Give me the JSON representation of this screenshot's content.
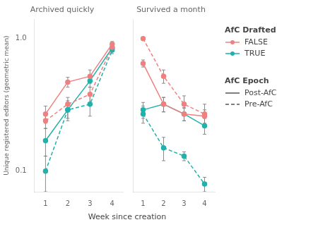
{
  "chart_data": {
    "type": "line",
    "xlabel": "Week since creation",
    "ylabel": "Unique registered editors (geometric mean)",
    "log": "y",
    "grid": false,
    "marker": "circle",
    "legend": "right",
    "xlim": [
      0.5,
      4.5
    ],
    "xticks": [
      1,
      2,
      3,
      4
    ],
    "ylim": [
      0.07,
      1.4
    ],
    "yticks": [
      0.1,
      {
        "value": 1.0,
        "label": "1.0"
      }
    ],
    "legend_groups": [
      {
        "title": "AfC Drafted",
        "entries": [
          {
            "name": "FALSE",
            "color": "#f08080",
            "line_style": "solid"
          },
          {
            "name": "TRUE",
            "color": "#20b2aa",
            "line_style": "solid"
          }
        ]
      },
      {
        "title": "AfC Epoch",
        "entries": [
          {
            "name": "Post-AfC",
            "color": "#555555",
            "line_style": "solid"
          },
          {
            "name": "Pre-AfC",
            "color": "#555555",
            "line_style": "dashed"
          }
        ]
      }
    ],
    "panels": [
      {
        "title": "Archived quickly",
        "series": [
          {
            "drafted": "FALSE",
            "epoch": "Post-AfC",
            "values": [
              0.27,
              0.47,
              0.52,
              0.91
            ],
            "errors": {
              "minus": [
                0.04,
                0.04,
                0.06,
                0.04
              ],
              "plus": [
                0.04,
                0.04,
                0.06,
                0.04
              ]
            }
          },
          {
            "drafted": "FALSE",
            "epoch": "Pre-AfC",
            "values": [
              0.24,
              0.32,
              0.38,
              0.86
            ],
            "errors": {
              "minus": [
                0.03,
                0.04,
                0.05,
                0.05
              ],
              "plus": [
                0.03,
                0.04,
                0.05,
                0.05
              ]
            }
          },
          {
            "drafted": "TRUE",
            "epoch": "Post-AfC",
            "values": [
              0.17,
              0.29,
              0.48,
              0.85
            ],
            "errors": {
              "minus": [
                0.04,
                0.04,
                0.05,
                0.05
              ],
              "plus": [
                0.04,
                0.04,
                0.05,
                0.05
              ]
            }
          },
          {
            "drafted": "TRUE",
            "epoch": "Pre-AfC",
            "values": [
              0.1,
              0.29,
              0.32,
              0.82
            ],
            "errors": {
              "minus": [
                0.03,
                0.05,
                0.06,
                0.05
              ],
              "plus": [
                0.03,
                0.05,
                0.06,
                0.05
              ]
            }
          }
        ]
      },
      {
        "title": "Survived a month",
        "series": [
          {
            "drafted": "FALSE",
            "epoch": "Post-AfC",
            "values": [
              0.65,
              0.32,
              0.27,
              0.26
            ],
            "errors": {
              "minus": [
                0.04,
                0.04,
                0.03,
                0.03
              ],
              "plus": [
                0.04,
                0.04,
                0.03,
                0.03
              ]
            }
          },
          {
            "drafted": "FALSE",
            "epoch": "Pre-AfC",
            "values": [
              1.0,
              0.52,
              0.32,
              0.27
            ],
            "errors": {
              "minus": [
                0.01,
                0.06,
                0.05,
                0.05
              ],
              "plus": [
                0.01,
                0.06,
                0.05,
                0.05
              ]
            }
          },
          {
            "drafted": "TRUE",
            "epoch": "Post-AfC",
            "values": [
              0.29,
              0.32,
              0.27,
              0.22
            ],
            "errors": {
              "minus": [
                0.04,
                0.04,
                0.03,
                0.03
              ],
              "plus": [
                0.04,
                0.04,
                0.03,
                0.03
              ]
            }
          },
          {
            "drafted": "TRUE",
            "epoch": "Pre-AfC",
            "values": [
              0.27,
              0.15,
              0.13,
              0.08
            ],
            "errors": {
              "minus": [
                0.04,
                0.03,
                0.01,
                0.01
              ],
              "plus": [
                0.04,
                0.03,
                0.01,
                0.01
              ]
            }
          }
        ]
      }
    ]
  }
}
